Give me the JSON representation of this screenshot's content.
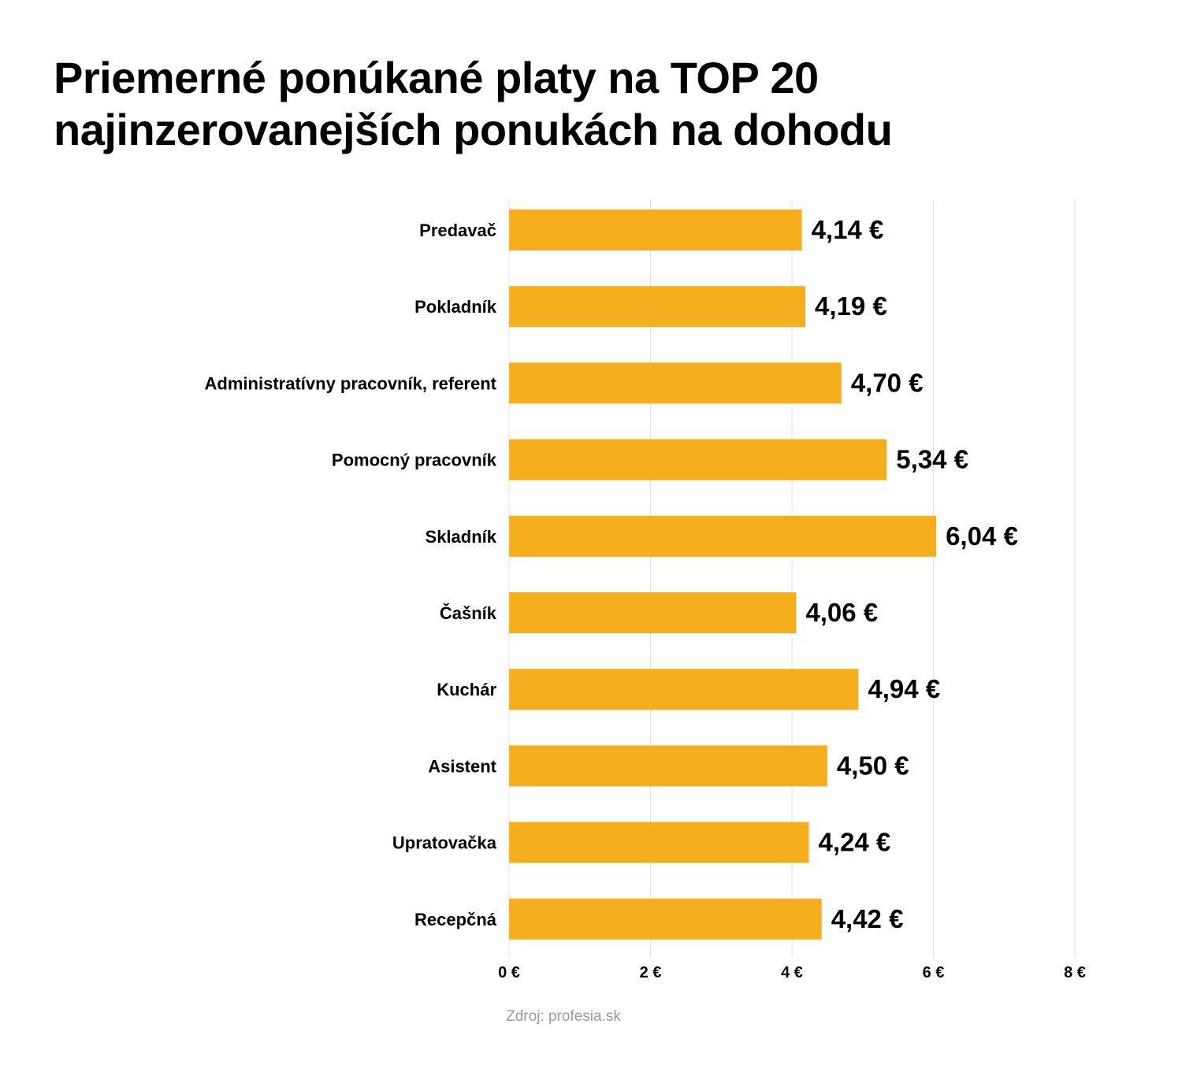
{
  "title_lines": [
    "Priemerné ponúkané platy na TOP 20",
    "najinzerovanejších ponukách na dohodu"
  ],
  "source": "Zdroj: profesia.sk",
  "colors": {
    "bar": "#F7AE1D",
    "grid": "#e0e0e0",
    "text": "#000000",
    "source": "#9a9a9a"
  },
  "chart_data": {
    "type": "bar",
    "orientation": "horizontal",
    "categories": [
      "Predavač",
      "Pokladník",
      "Administratívny pracovník, referent",
      "Pomocný pracovník",
      "Skladník",
      "Čašník",
      "Kuchár",
      "Asistent",
      "Upratovačka",
      "Recepčná"
    ],
    "values": [
      4.14,
      4.19,
      4.7,
      5.34,
      6.04,
      4.06,
      4.94,
      4.5,
      4.24,
      4.42
    ],
    "value_labels": [
      "4,14 €",
      "4,19 €",
      "4,70 €",
      "5,34 €",
      "6,04 €",
      "4,06 €",
      "4,94 €",
      "4,50 €",
      "4,24 €",
      "4,42 €"
    ],
    "xlim": [
      0,
      8
    ],
    "x_ticks": [
      0,
      2,
      4,
      6,
      8
    ],
    "x_tick_labels": [
      "0 €",
      "2 €",
      "4 €",
      "6 €",
      "8 €"
    ],
    "grid": true,
    "legend": "none"
  }
}
